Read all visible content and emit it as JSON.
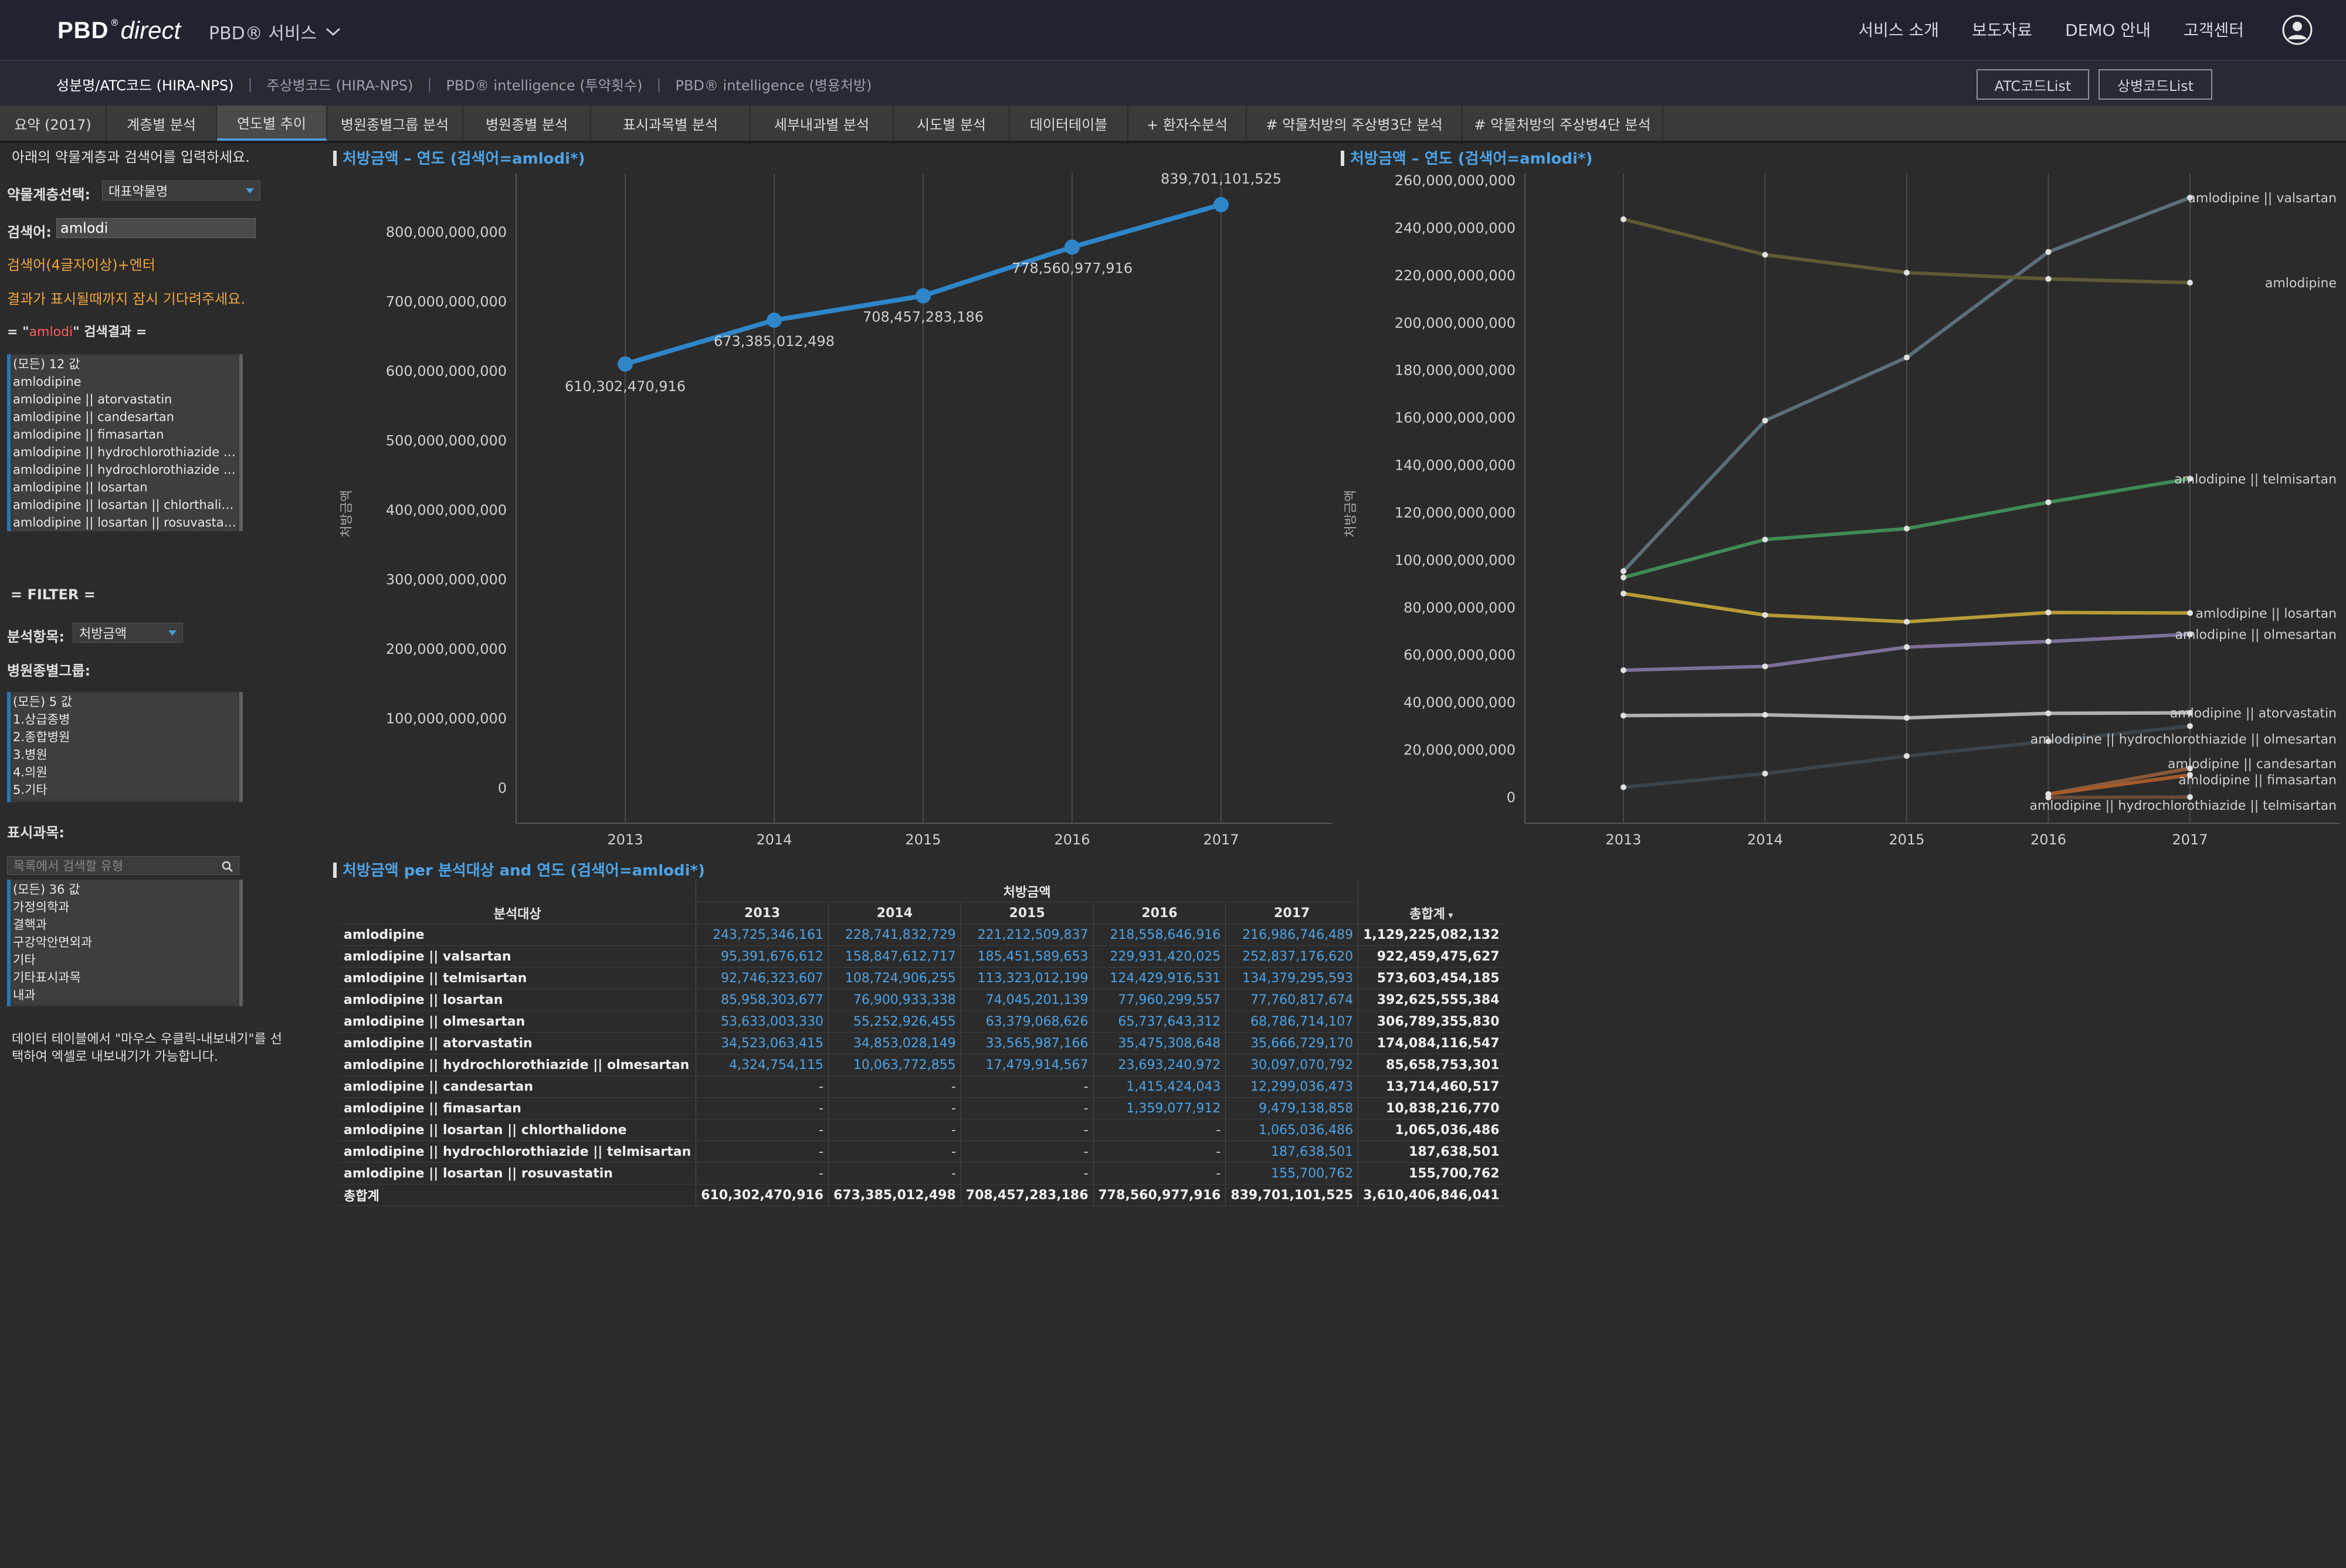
{
  "header": {
    "brand_pbd": "PBD",
    "brand_reg": "®",
    "brand_direct": "direct",
    "service_menu": "PBD® 서비스",
    "links": [
      "서비스 소개",
      "보도자료",
      "DEMO 안내",
      "고객센터"
    ]
  },
  "subnav": {
    "links": [
      "성분명/ATC코드 (HIRA-NPS)",
      "주상병코드 (HIRA-NPS)",
      "PBD® intelligence (투약횟수)",
      "PBD® intelligence (병용처방)"
    ],
    "atc_button": "ATC코드List",
    "sangbyeong_button": "상병코드List"
  },
  "tabs": [
    "요약 (2017)",
    "계층별 분석",
    "연도별 추이",
    "병원종별그룹 분석",
    "병원종별 분석",
    "표시과목별 분석",
    "세부내과별 분석",
    "시도별 분석",
    "데이터테이블",
    "+ 환자수분석",
    "# 약물처방의 주상병3단 분석",
    "# 약물처방의 주상병4단 분석"
  ],
  "left": {
    "intro": "아래의 약물계층과 검색어를 입력하세요.",
    "drug_level_label": "약물계층선택:",
    "drug_level_value": "대표약물명",
    "search_label": "검색어:",
    "search_value": "amlodi",
    "hint1": "검색어(4글자이상)+엔터",
    "hint2": "결과가 표시될때까지 잠시 기다려주세요.",
    "result_prefix": "= \"",
    "result_term": "amlodi",
    "result_suffix": "\" 검색결과 =",
    "results": [
      "(모든) 12 값",
      "amlodipine",
      "amlodipine || atorvastatin",
      "amlodipine || candesartan",
      "amlodipine || fimasartan",
      "amlodipine || hydrochlorothiazide |...",
      "amlodipine || hydrochlorothiazide |...",
      "amlodipine || losartan",
      "amlodipine || losartan || chlorthalid...",
      "amlodipine || losartan || rosuvastatin"
    ],
    "filter_title": "= FILTER =",
    "analysis_label": "분석항목:",
    "analysis_value": "처방금액",
    "hospital_group_label": "병원종별그룹:",
    "hospital_groups": [
      "(모든) 5 값",
      "1.상급종병",
      "2.종합병원",
      "3.병원",
      "4.의원",
      "5.기타"
    ],
    "dept_label": "표시과목:",
    "dept_search_placeholder": "목록에서 검색할 유형",
    "depts": [
      "(모든) 36 값",
      "가정의학과",
      "결핵과",
      "구강악안면외과",
      "기타",
      "기타표시과목",
      "내과"
    ],
    "note_line1": "데이터 테이블에서 \"마우스 우클릭-내보내기\"를 선",
    "note_line2": "택하여 엑셀로 내보내기가 가능합니다."
  },
  "chart_data": [
    {
      "type": "line",
      "title": "처방금액 – 연도 (검색어=amlodi*)",
      "ylabel": "처방금액",
      "x": [
        "2013",
        "2014",
        "2015",
        "2016",
        "2017"
      ],
      "series": [
        {
          "values": [
            610302470916,
            673385012498,
            708457283186,
            778560977916,
            839701101525
          ]
        }
      ],
      "data_labels": [
        "610,302,470,916",
        "673,385,012,498",
        "708,457,283,186",
        "778,560,977,916",
        "839,701,101,525"
      ],
      "ylim": [
        0,
        900000000000
      ],
      "yticks": [
        "0",
        "100,000,000,000",
        "200,000,000,000",
        "300,000,000,000",
        "400,000,000,000",
        "500,000,000,000",
        "600,000,000,000",
        "700,000,000,000",
        "800,000,000,000"
      ],
      "color": "#2e86c9",
      "grid": "vertical"
    },
    {
      "type": "line",
      "title": "처방금액 – 연도 (검색어=amlodi*)",
      "ylabel": "처방금액",
      "x": [
        "2013",
        "2014",
        "2015",
        "2016",
        "2017"
      ],
      "ylim": [
        0,
        260000000000
      ],
      "yticks": [
        "0",
        "20,000,000,000",
        "40,000,000,000",
        "60,000,000,000",
        "80,000,000,000",
        "100,000,000,000",
        "120,000,000,000",
        "140,000,000,000",
        "160,000,000,000",
        "180,000,000,000",
        "200,000,000,000",
        "220,000,000,000",
        "240,000,000,000",
        "260,000,000,000"
      ],
      "grid": "vertical",
      "series": [
        {
          "name": "amlodipine || valsartan",
          "color": "#5c6f78",
          "values": [
            95391676612,
            158847612717,
            185451589653,
            229931420025,
            252837176620
          ]
        },
        {
          "name": "amlodipine",
          "color": "#5d5a35",
          "values": [
            243725346161,
            228741832729,
            221212509837,
            218558646916,
            216986746489
          ]
        },
        {
          "name": "amlodipine || telmisartan",
          "color": "#3f8a55",
          "values": [
            92746323607,
            108724906255,
            113323012199,
            124429916531,
            134379295593
          ]
        },
        {
          "name": "amlodipine || losartan",
          "color": "#b79a38",
          "values": [
            85958303677,
            76900933338,
            74045201139,
            77960299557,
            77760817674
          ]
        },
        {
          "name": "amlodipine || olmesartan",
          "color": "#7c6f98",
          "values": [
            53633003330,
            55252926455,
            63379068626,
            65737643312,
            68786714107
          ]
        },
        {
          "name": "amlodipine || atorvastatin",
          "color": "#b0b0b0",
          "values": [
            34523063415,
            34853028149,
            33565987166,
            35475308648,
            35666729170
          ]
        },
        {
          "name": "amlodipine || hydrochlorothiazide || olmesartan",
          "color": "#3c444a",
          "values": [
            4324754115,
            10063772855,
            17479914567,
            23693240972,
            30097070792
          ]
        },
        {
          "name": "amlodipine || candesartan",
          "color": "#8a5a3a",
          "values": [
            null,
            null,
            null,
            1415424043,
            12299036473
          ]
        },
        {
          "name": "amlodipine || fimasartan",
          "color": "#a35a2a",
          "values": [
            null,
            null,
            null,
            1359077912,
            9479138858
          ]
        },
        {
          "name": "amlodipine || hydrochlorothiazide || telmisartan",
          "color": "#6a4a3a",
          "values": [
            null,
            null,
            null,
            null,
            187638501
          ]
        }
      ],
      "end_labels": [
        "amlodipine || valsartan",
        "amlodipine",
        "amlodipine || telmisartan",
        "amlodipine || losartan",
        "amlodipine || olmesartan",
        "amlodipine || atorvastatin",
        "amlodipine || hydrochlorothiazide || olmesartan",
        "amlodipine || candesartan",
        "amlodipine || fimasartan",
        "amlodipine || hydrochlorothiazide || telmisartan"
      ]
    },
    {
      "type": "table",
      "title": "처방금액 per 분석대상 and 연도 (검색어=amlodi*)",
      "group_header": "처방금액",
      "row_header": "분석대상",
      "columns": [
        "2013",
        "2014",
        "2015",
        "2016",
        "2017"
      ],
      "total_header": "총합계",
      "rows": [
        {
          "label": "amlodipine",
          "values": [
            "243,725,346,161",
            "228,741,832,729",
            "221,212,509,837",
            "218,558,646,916",
            "216,986,746,489"
          ],
          "total": "1,129,225,082,132"
        },
        {
          "label": "amlodipine || valsartan",
          "values": [
            "95,391,676,612",
            "158,847,612,717",
            "185,451,589,653",
            "229,931,420,025",
            "252,837,176,620"
          ],
          "total": "922,459,475,627"
        },
        {
          "label": "amlodipine || telmisartan",
          "values": [
            "92,746,323,607",
            "108,724,906,255",
            "113,323,012,199",
            "124,429,916,531",
            "134,379,295,593"
          ],
          "total": "573,603,454,185"
        },
        {
          "label": "amlodipine || losartan",
          "values": [
            "85,958,303,677",
            "76,900,933,338",
            "74,045,201,139",
            "77,960,299,557",
            "77,760,817,674"
          ],
          "total": "392,625,555,384"
        },
        {
          "label": "amlodipine || olmesartan",
          "values": [
            "53,633,003,330",
            "55,252,926,455",
            "63,379,068,626",
            "65,737,643,312",
            "68,786,714,107"
          ],
          "total": "306,789,355,830"
        },
        {
          "label": "amlodipine || atorvastatin",
          "values": [
            "34,523,063,415",
            "34,853,028,149",
            "33,565,987,166",
            "35,475,308,648",
            "35,666,729,170"
          ],
          "total": "174,084,116,547"
        },
        {
          "label": "amlodipine || hydrochlorothiazide || olmesartan",
          "values": [
            "4,324,754,115",
            "10,063,772,855",
            "17,479,914,567",
            "23,693,240,972",
            "30,097,070,792"
          ],
          "total": "85,658,753,301"
        },
        {
          "label": "amlodipine || candesartan",
          "values": [
            "-",
            "-",
            "-",
            "1,415,424,043",
            "12,299,036,473"
          ],
          "total": "13,714,460,517"
        },
        {
          "label": "amlodipine || fimasartan",
          "values": [
            "-",
            "-",
            "-",
            "1,359,077,912",
            "9,479,138,858"
          ],
          "total": "10,838,216,770"
        },
        {
          "label": "amlodipine || losartan || chlorthalidone",
          "values": [
            "-",
            "-",
            "-",
            "-",
            "1,065,036,486"
          ],
          "total": "1,065,036,486"
        },
        {
          "label": "amlodipine || hydrochlorothiazide || telmisartan",
          "values": [
            "-",
            "-",
            "-",
            "-",
            "187,638,501"
          ],
          "total": "187,638,501"
        },
        {
          "label": "amlodipine || losartan || rosuvastatin",
          "values": [
            "-",
            "-",
            "-",
            "-",
            "155,700,762"
          ],
          "total": "155,700,762"
        }
      ],
      "grand_total": {
        "label": "총합계",
        "values": [
          "610,302,470,916",
          "673,385,012,498",
          "708,457,283,186",
          "778,560,977,916",
          "839,701,101,525"
        ],
        "total": "3,610,406,846,041"
      }
    }
  ]
}
